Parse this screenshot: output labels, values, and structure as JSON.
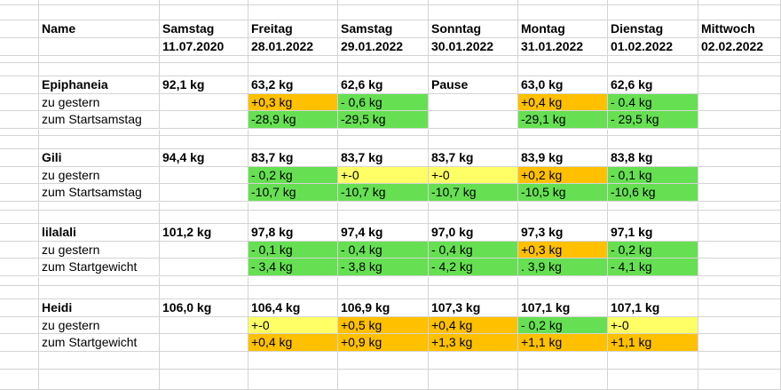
{
  "sheet": {
    "headers": [
      {
        "line1": "Name",
        "line2": ""
      },
      {
        "line1": "Samstag",
        "line2": "11.07.2020"
      },
      {
        "line1": "Freitag",
        "line2": "28.01.2022"
      },
      {
        "line1": "Samstag",
        "line2": "29.01.2022"
      },
      {
        "line1": "Sonntag",
        "line2": "30.01.2022"
      },
      {
        "line1": "Montag",
        "line2": "31.01.2022"
      },
      {
        "line1": "Dienstag",
        "line2": "01.02.2022"
      },
      {
        "line1": "Mittwoch",
        "line2": "02.02.2022"
      }
    ],
    "blocks": [
      {
        "rows": [
          {
            "cells": [
              {
                "t": "Epiphaneia",
                "b": true
              },
              {
                "t": "92,1 kg",
                "b": true
              },
              {
                "t": "63,2 kg",
                "b": true
              },
              {
                "t": "62,6 kg",
                "b": true
              },
              {
                "t": "Pause",
                "b": true
              },
              {
                "t": "63,0 kg",
                "b": true
              },
              {
                "t": "62,6 kg",
                "b": true
              },
              {
                "t": ""
              }
            ]
          },
          {
            "cells": [
              {
                "t": "zu gestern"
              },
              {
                "t": ""
              },
              {
                "t": "+0,3 kg",
                "c": "o"
              },
              {
                "t": "- 0,6 kg",
                "c": "g"
              },
              {
                "t": ""
              },
              {
                "t": "+0,4 kg",
                "c": "o"
              },
              {
                "t": "- 0.4 kg",
                "c": "g"
              },
              {
                "t": ""
              }
            ]
          },
          {
            "cells": [
              {
                "t": "zum Startsamstag"
              },
              {
                "t": ""
              },
              {
                "t": "-28,9 kg",
                "c": "g"
              },
              {
                "t": "-29,5 kg",
                "c": "g"
              },
              {
                "t": ""
              },
              {
                "t": "-29,1 kg",
                "c": "g"
              },
              {
                "t": "- 29,5 kg",
                "c": "g"
              },
              {
                "t": ""
              }
            ]
          }
        ]
      },
      {
        "rows": [
          {
            "cells": [
              {
                "t": "Gili",
                "b": true
              },
              {
                "t": "94,4 kg",
                "b": true
              },
              {
                "t": "83,7 kg",
                "b": true
              },
              {
                "t": "83,7 kg",
                "b": true
              },
              {
                "t": "83,7 kg",
                "b": true
              },
              {
                "t": "83,9 kg",
                "b": true
              },
              {
                "t": "83,8 kg",
                "b": true
              },
              {
                "t": ""
              }
            ]
          },
          {
            "cells": [
              {
                "t": "zu gestern"
              },
              {
                "t": ""
              },
              {
                "t": "- 0,2 kg",
                "c": "g"
              },
              {
                "t": "+-0",
                "c": "y"
              },
              {
                "t": "+-0",
                "c": "y"
              },
              {
                "t": "+0,2 kg",
                "c": "o"
              },
              {
                "t": "- 0,1 kg",
                "c": "g"
              },
              {
                "t": ""
              }
            ]
          },
          {
            "cells": [
              {
                "t": "zum Startsamstag"
              },
              {
                "t": ""
              },
              {
                "t": "-10,7 kg",
                "c": "g"
              },
              {
                "t": "-10,7 kg",
                "c": "g"
              },
              {
                "t": "-10,7 kg",
                "c": "g"
              },
              {
                "t": "-10,5 kg",
                "c": "g"
              },
              {
                "t": "-10,6 kg",
                "c": "g"
              },
              {
                "t": ""
              }
            ]
          }
        ]
      },
      {
        "rows": [
          {
            "cells": [
              {
                "t": "lilalali",
                "b": true
              },
              {
                "t": "101,2 kg",
                "b": true
              },
              {
                "t": "97,8 kg",
                "b": true
              },
              {
                "t": "97,4 kg",
                "b": true
              },
              {
                "t": "97,0 kg",
                "b": true
              },
              {
                "t": "97,3 kg",
                "b": true
              },
              {
                "t": "97,1 kg",
                "b": true
              },
              {
                "t": ""
              }
            ]
          },
          {
            "cells": [
              {
                "t": "zu gestern"
              },
              {
                "t": ""
              },
              {
                "t": "- 0,1 kg",
                "c": "g"
              },
              {
                "t": "- 0,4 kg",
                "c": "g"
              },
              {
                "t": "- 0,4 kg",
                "c": "g"
              },
              {
                "t": "+0,3 kg",
                "c": "o"
              },
              {
                "t": "- 0,2 kg",
                "c": "g"
              },
              {
                "t": ""
              }
            ]
          },
          {
            "cells": [
              {
                "t": "zum Startgewicht"
              },
              {
                "t": ""
              },
              {
                "t": "- 3,4 kg",
                "c": "g"
              },
              {
                "t": "- 3,8 kg",
                "c": "g"
              },
              {
                "t": "- 4,2 kg",
                "c": "g"
              },
              {
                "t": ". 3,9 kg",
                "c": "g"
              },
              {
                "t": "- 4,1 kg",
                "c": "g"
              },
              {
                "t": ""
              }
            ]
          }
        ]
      },
      {
        "rows": [
          {
            "cells": [
              {
                "t": "Heidi",
                "b": true
              },
              {
                "t": "106,0 kg",
                "b": true
              },
              {
                "t": "106,4 kg",
                "b": true
              },
              {
                "t": "106,9 kg",
                "b": true
              },
              {
                "t": "107,3 kg",
                "b": true
              },
              {
                "t": "107,1 kg",
                "b": true
              },
              {
                "t": "107,1 kg",
                "b": true
              },
              {
                "t": ""
              }
            ]
          },
          {
            "cells": [
              {
                "t": "zu gestern"
              },
              {
                "t": ""
              },
              {
                "t": "+-0",
                "c": "y"
              },
              {
                "t": "+0,5 kg",
                "c": "o"
              },
              {
                "t": "+0,4 kg",
                "c": "o"
              },
              {
                "t": "- 0,2 kg",
                "c": "g"
              },
              {
                "t": "+-0",
                "c": "y"
              },
              {
                "t": ""
              }
            ]
          },
          {
            "cells": [
              {
                "t": "zum Startgewicht"
              },
              {
                "t": ""
              },
              {
                "t": "+0,4 kg",
                "c": "o"
              },
              {
                "t": "+0,9 kg",
                "c": "o"
              },
              {
                "t": "+1,3 kg",
                "c": "o"
              },
              {
                "t": "+1,1 kg",
                "c": "o"
              },
              {
                "t": "+1,1 kg",
                "c": "o"
              },
              {
                "t": ""
              }
            ]
          }
        ]
      }
    ],
    "colors": {
      "g": "#66e052",
      "o": "#ffc000",
      "y": "#ffff66",
      "gridline": "#d4d4d4"
    }
  }
}
